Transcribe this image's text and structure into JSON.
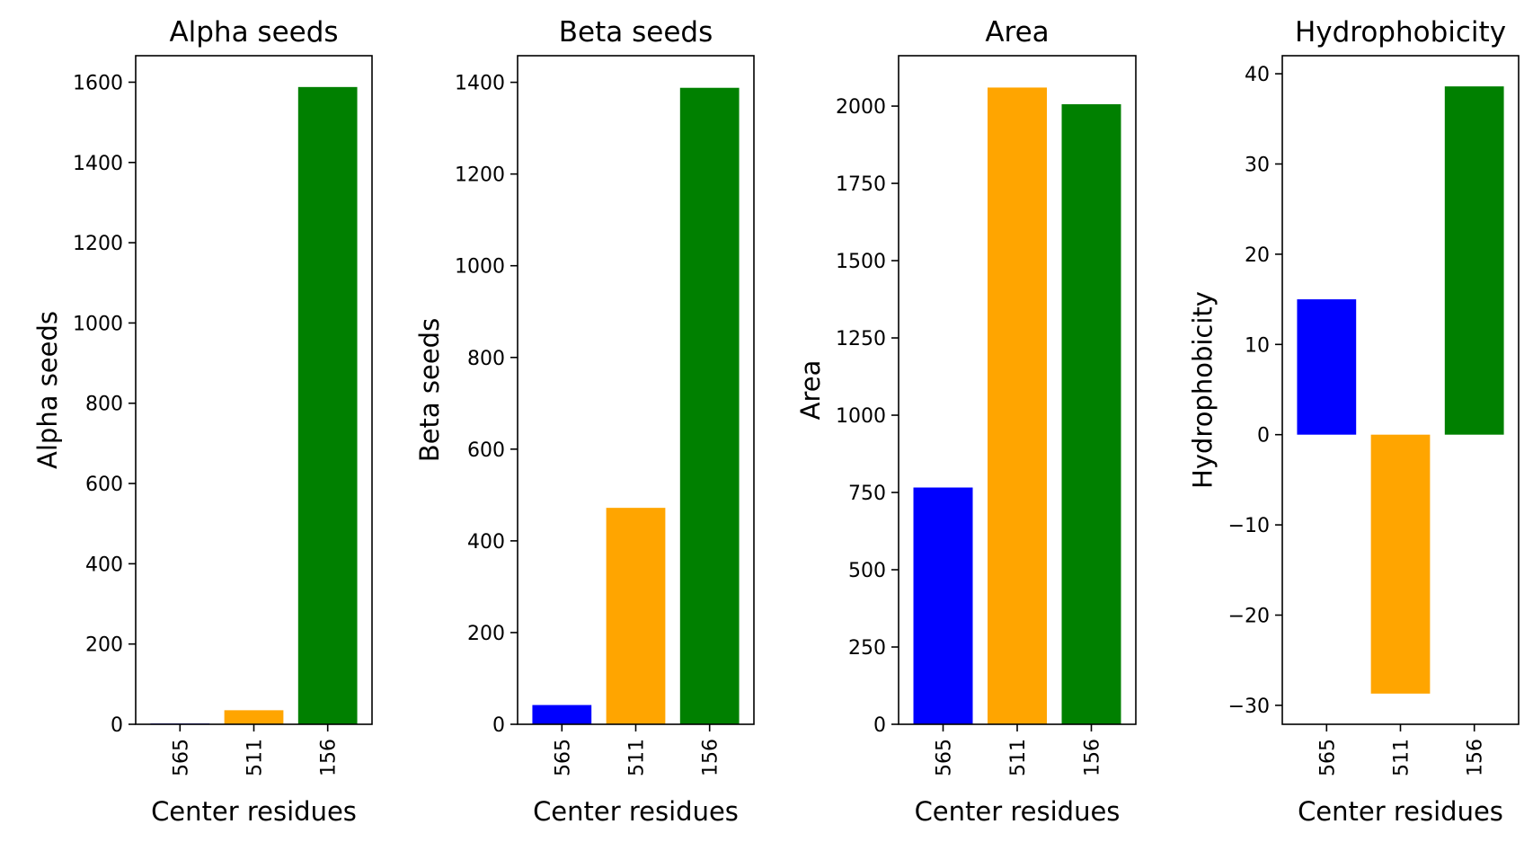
{
  "chart_data": [
    {
      "type": "bar",
      "title": "Alpha seeds",
      "xlabel": "Center residues",
      "ylabel": "Alpha seeds",
      "categories": [
        "565",
        "511",
        "156"
      ],
      "values": [
        2,
        35,
        1588
      ],
      "colors": [
        "#0000ff",
        "#ffa500",
        "#008000"
      ],
      "ylim": [
        0,
        1666
      ],
      "yticks": [
        0,
        200,
        400,
        600,
        800,
        1000,
        1200,
        1400,
        1600
      ],
      "grid": false
    },
    {
      "type": "bar",
      "title": "Beta seeds",
      "xlabel": "Center residues",
      "ylabel": "Beta seeds",
      "categories": [
        "565",
        "511",
        "156"
      ],
      "values": [
        42,
        472,
        1388
      ],
      "colors": [
        "#0000ff",
        "#ffa500",
        "#008000"
      ],
      "ylim": [
        0,
        1458
      ],
      "yticks": [
        0,
        200,
        400,
        600,
        800,
        1000,
        1200,
        1400
      ],
      "grid": false
    },
    {
      "type": "bar",
      "title": "Area",
      "xlabel": "Center residues",
      "ylabel": "Area",
      "categories": [
        "565",
        "511",
        "156"
      ],
      "values": [
        766,
        2060,
        2006
      ],
      "colors": [
        "#0000ff",
        "#ffa500",
        "#008000"
      ],
      "ylim": [
        0,
        2163
      ],
      "yticks": [
        0,
        250,
        500,
        750,
        1000,
        1250,
        1500,
        1750,
        2000
      ],
      "grid": false
    },
    {
      "type": "bar",
      "title": "Hydrophobicity",
      "xlabel": "Center residues",
      "ylabel": "Hydrophobicity",
      "categories": [
        "565",
        "511",
        "156"
      ],
      "values": [
        15.0,
        -28.7,
        38.6
      ],
      "colors": [
        "#0000ff",
        "#ffa500",
        "#008000"
      ],
      "ylim": [
        -32.1,
        42.0
      ],
      "yticks": [
        -30,
        -20,
        -10,
        0,
        10,
        20,
        30,
        40
      ],
      "grid": false
    }
  ]
}
